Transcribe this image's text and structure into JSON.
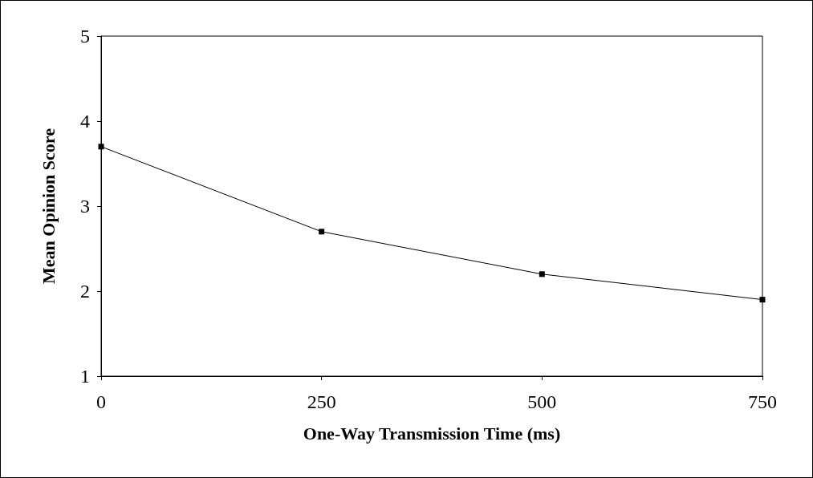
{
  "chart_data": {
    "type": "line",
    "xlabel": "One-Way Transmission Time (ms)",
    "ylabel": "Mean Opinion Score",
    "x": [
      0,
      250,
      500,
      750
    ],
    "series": [
      {
        "color": "#000000",
        "values": [
          3.7,
          2.7,
          2.2,
          1.9
        ]
      }
    ],
    "xlim": [
      0,
      750
    ],
    "xticks": [
      0,
      250,
      500,
      750
    ],
    "ylim": [
      1,
      5
    ],
    "yticks": [
      1,
      2,
      3,
      4,
      5
    ],
    "grid": false,
    "marker": "square",
    "line_style": "solid"
  }
}
